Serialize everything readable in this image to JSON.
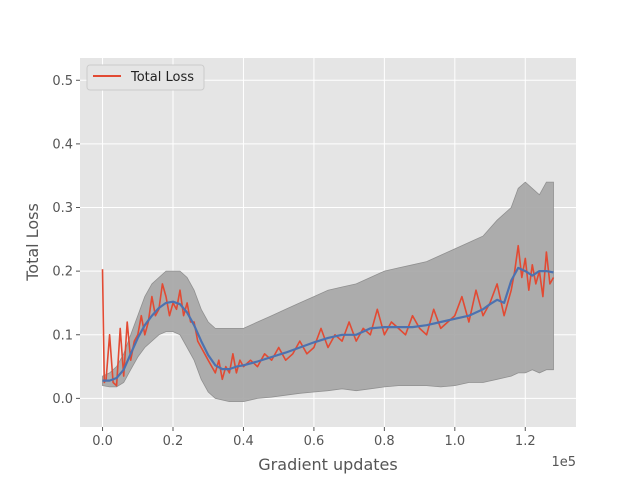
{
  "chart_data": {
    "type": "line",
    "title": "",
    "xlabel": "Gradient updates",
    "ylabel": "Total Loss",
    "x_offset_label": "1e5",
    "xlim": [
      -0.064,
      1.344
    ],
    "ylim": [
      -0.045,
      0.535
    ],
    "x_ticks": [
      0.0,
      0.2,
      0.4,
      0.6,
      0.8,
      1.0,
      1.2
    ],
    "x_tick_labels": [
      "0.0",
      "0.2",
      "0.4",
      "0.6",
      "0.8",
      "1.0",
      "1.2"
    ],
    "y_ticks": [
      0.0,
      0.1,
      0.2,
      0.3,
      0.4,
      0.5
    ],
    "y_tick_labels": [
      "0.0",
      "0.1",
      "0.2",
      "0.3",
      "0.4",
      "0.5"
    ],
    "grid": true,
    "legend_position": "top-left",
    "legend": [
      "Total Loss"
    ],
    "series": [
      {
        "name": "Total Loss",
        "role": "raw",
        "color": "#e24a33",
        "x": [
          0.0,
          0.005,
          0.01,
          0.02,
          0.03,
          0.04,
          0.05,
          0.06,
          0.07,
          0.08,
          0.09,
          0.1,
          0.11,
          0.12,
          0.13,
          0.14,
          0.15,
          0.16,
          0.17,
          0.18,
          0.19,
          0.2,
          0.21,
          0.22,
          0.23,
          0.24,
          0.25,
          0.26,
          0.27,
          0.28,
          0.29,
          0.3,
          0.31,
          0.32,
          0.33,
          0.34,
          0.35,
          0.36,
          0.37,
          0.38,
          0.39,
          0.4,
          0.42,
          0.44,
          0.46,
          0.48,
          0.5,
          0.52,
          0.54,
          0.56,
          0.58,
          0.6,
          0.62,
          0.64,
          0.66,
          0.68,
          0.7,
          0.72,
          0.74,
          0.76,
          0.78,
          0.8,
          0.82,
          0.84,
          0.86,
          0.88,
          0.9,
          0.92,
          0.94,
          0.96,
          0.98,
          1.0,
          1.02,
          1.04,
          1.06,
          1.08,
          1.1,
          1.12,
          1.14,
          1.16,
          1.17,
          1.18,
          1.19,
          1.2,
          1.21,
          1.22,
          1.23,
          1.24,
          1.25,
          1.26,
          1.27,
          1.28
        ],
        "values": [
          0.203,
          0.025,
          0.03,
          0.1,
          0.025,
          0.02,
          0.11,
          0.035,
          0.12,
          0.06,
          0.09,
          0.1,
          0.13,
          0.1,
          0.12,
          0.16,
          0.13,
          0.14,
          0.18,
          0.16,
          0.13,
          0.15,
          0.14,
          0.17,
          0.13,
          0.15,
          0.12,
          0.12,
          0.09,
          0.08,
          0.07,
          0.06,
          0.05,
          0.04,
          0.06,
          0.03,
          0.05,
          0.04,
          0.07,
          0.04,
          0.06,
          0.05,
          0.06,
          0.05,
          0.07,
          0.06,
          0.08,
          0.06,
          0.07,
          0.09,
          0.07,
          0.08,
          0.11,
          0.08,
          0.1,
          0.09,
          0.12,
          0.09,
          0.11,
          0.1,
          0.14,
          0.1,
          0.12,
          0.11,
          0.1,
          0.13,
          0.11,
          0.1,
          0.14,
          0.11,
          0.12,
          0.13,
          0.16,
          0.12,
          0.17,
          0.13,
          0.15,
          0.18,
          0.13,
          0.17,
          0.2,
          0.24,
          0.19,
          0.22,
          0.17,
          0.21,
          0.18,
          0.2,
          0.16,
          0.23,
          0.18,
          0.19
        ]
      },
      {
        "name": "",
        "role": "smoothed",
        "color": "#4c72b0",
        "x": [
          0.0,
          0.02,
          0.04,
          0.06,
          0.08,
          0.1,
          0.12,
          0.14,
          0.16,
          0.18,
          0.2,
          0.22,
          0.24,
          0.26,
          0.28,
          0.3,
          0.32,
          0.34,
          0.36,
          0.38,
          0.4,
          0.44,
          0.48,
          0.52,
          0.56,
          0.6,
          0.64,
          0.68,
          0.72,
          0.74,
          0.76,
          0.8,
          0.84,
          0.88,
          0.92,
          0.96,
          1.0,
          1.04,
          1.08,
          1.1,
          1.12,
          1.14,
          1.16,
          1.18,
          1.2,
          1.22,
          1.24,
          1.26,
          1.28
        ],
        "values": [
          0.028,
          0.028,
          0.032,
          0.045,
          0.07,
          0.095,
          0.115,
          0.13,
          0.142,
          0.15,
          0.152,
          0.148,
          0.135,
          0.115,
          0.09,
          0.068,
          0.052,
          0.046,
          0.046,
          0.05,
          0.052,
          0.058,
          0.065,
          0.072,
          0.08,
          0.088,
          0.095,
          0.1,
          0.1,
          0.105,
          0.11,
          0.112,
          0.112,
          0.112,
          0.115,
          0.12,
          0.125,
          0.13,
          0.14,
          0.148,
          0.155,
          0.15,
          0.185,
          0.205,
          0.2,
          0.193,
          0.2,
          0.2,
          0.198
        ]
      },
      {
        "name": "",
        "role": "band",
        "color": "#aaaaaa",
        "x": [
          0.0,
          0.02,
          0.04,
          0.06,
          0.08,
          0.1,
          0.12,
          0.14,
          0.16,
          0.18,
          0.2,
          0.22,
          0.24,
          0.26,
          0.28,
          0.3,
          0.32,
          0.36,
          0.4,
          0.44,
          0.48,
          0.52,
          0.56,
          0.6,
          0.64,
          0.68,
          0.72,
          0.76,
          0.8,
          0.84,
          0.88,
          0.92,
          0.96,
          1.0,
          1.04,
          1.08,
          1.12,
          1.16,
          1.18,
          1.2,
          1.22,
          1.24,
          1.26,
          1.28
        ],
        "upper": [
          0.035,
          0.04,
          0.05,
          0.07,
          0.1,
          0.13,
          0.16,
          0.18,
          0.19,
          0.2,
          0.2,
          0.2,
          0.19,
          0.17,
          0.14,
          0.12,
          0.11,
          0.11,
          0.11,
          0.12,
          0.13,
          0.14,
          0.15,
          0.16,
          0.17,
          0.175,
          0.18,
          0.19,
          0.2,
          0.205,
          0.21,
          0.215,
          0.225,
          0.235,
          0.245,
          0.255,
          0.28,
          0.3,
          0.33,
          0.34,
          0.33,
          0.32,
          0.34,
          0.34
        ],
        "lower": [
          0.02,
          0.018,
          0.018,
          0.025,
          0.045,
          0.065,
          0.08,
          0.09,
          0.1,
          0.105,
          0.105,
          0.1,
          0.08,
          0.06,
          0.03,
          0.01,
          0.0,
          -0.005,
          -0.005,
          0.0,
          0.002,
          0.005,
          0.008,
          0.01,
          0.012,
          0.015,
          0.012,
          0.015,
          0.018,
          0.02,
          0.02,
          0.02,
          0.018,
          0.02,
          0.025,
          0.025,
          0.03,
          0.035,
          0.04,
          0.04,
          0.045,
          0.04,
          0.045,
          0.045
        ]
      }
    ]
  }
}
